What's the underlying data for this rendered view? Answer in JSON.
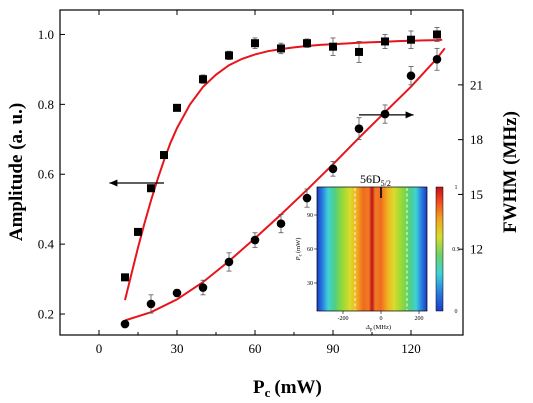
{
  "chart_data": {
    "type": "scatter",
    "xlabel": "P",
    "xlabel_sub": "c",
    "xlabel_unit": "(mW)",
    "ylabel_left": "Amplitude (a. u.)",
    "ylabel_right": "FWHM (MHz)",
    "xlim": [
      -15,
      140
    ],
    "ylim_left": [
      0.14,
      1.07
    ],
    "ylim_right": [
      7.3,
      25.1
    ],
    "x_ticks": [
      0,
      30,
      60,
      90,
      120
    ],
    "y_left_ticks": [
      0.2,
      0.4,
      0.6,
      0.8,
      1.0
    ],
    "y_right_ticks": [
      12,
      15,
      18,
      21
    ],
    "grid": false,
    "series": [
      {
        "marker": "square",
        "axis": "left",
        "color": "#000000",
        "x": [
          10,
          15,
          20,
          25,
          30,
          40,
          50,
          60,
          70,
          80,
          90,
          100,
          110,
          120,
          130
        ],
        "y": [
          0.305,
          0.435,
          0.56,
          0.655,
          0.79,
          0.872,
          0.94,
          0.975,
          0.96,
          0.975,
          0.965,
          0.95,
          0.98,
          0.985,
          1.0
        ],
        "err": [
          0.008,
          0.008,
          0.008,
          0.008,
          0.008,
          0.012,
          0.012,
          0.015,
          0.015,
          0.012,
          0.025,
          0.03,
          0.02,
          0.025,
          0.02
        ]
      },
      {
        "marker": "circle",
        "axis": "right",
        "color": "#000000",
        "x": [
          10,
          20,
          30,
          40,
          50,
          60,
          70,
          80,
          90,
          100,
          110,
          120,
          130
        ],
        "y": [
          7.9,
          9.0,
          9.6,
          9.9,
          11.3,
          12.5,
          13.4,
          14.8,
          16.4,
          18.6,
          19.4,
          21.5,
          22.4
        ],
        "err": [
          0.15,
          0.5,
          0.2,
          0.4,
          0.5,
          0.4,
          0.5,
          0.5,
          0.4,
          0.6,
          0.5,
          0.5,
          0.6
        ]
      }
    ],
    "fits": [
      {
        "axis": "left",
        "color": "#e8141b",
        "x": [
          10,
          12.5,
          15,
          17.5,
          20,
          22.5,
          25,
          27.5,
          30,
          35,
          40,
          45,
          50,
          55,
          60,
          65,
          70,
          75,
          80,
          85,
          90,
          95,
          100,
          105,
          110,
          115,
          120,
          125,
          130,
          132
        ],
        "y": [
          0.24,
          0.315,
          0.39,
          0.46,
          0.525,
          0.585,
          0.64,
          0.69,
          0.732,
          0.8,
          0.85,
          0.885,
          0.912,
          0.93,
          0.943,
          0.952,
          0.958,
          0.963,
          0.967,
          0.97,
          0.972,
          0.974,
          0.976,
          0.978,
          0.979,
          0.981,
          0.982,
          0.983,
          0.984,
          0.985
        ]
      },
      {
        "axis": "right",
        "color": "#e8141b",
        "x": [
          10,
          20,
          30,
          40,
          50,
          60,
          70,
          80,
          90,
          100,
          110,
          120,
          130,
          133
        ],
        "y": [
          8.1,
          8.55,
          9.25,
          10.2,
          11.35,
          12.6,
          13.9,
          15.25,
          16.65,
          18.1,
          19.5,
          20.9,
          22.45,
          23.0
        ]
      }
    ],
    "arrows": [
      {
        "direction": "left",
        "axis": "left",
        "x_from": 25,
        "x_to": 4,
        "y": 0.575
      },
      {
        "direction": "right",
        "axis": "left",
        "x_from": 100,
        "x_to": 121,
        "y": 0.77
      }
    ],
    "inset": {
      "type": "heatmap",
      "title": "56D",
      "title_sub": "5/2",
      "xlabel": "Δ",
      "xlabel_sub": "p",
      "xlabel_unit": "(MHz)",
      "ylabel": "P",
      "ylabel_sub": "c",
      "ylabel_unit": "(mW)",
      "x_ticks": [
        "-200",
        "0",
        "200"
      ],
      "y_ticks": [
        "30",
        "60",
        "90"
      ],
      "colorbar_ticks": [
        "0",
        "0.5",
        "1"
      ]
    }
  }
}
